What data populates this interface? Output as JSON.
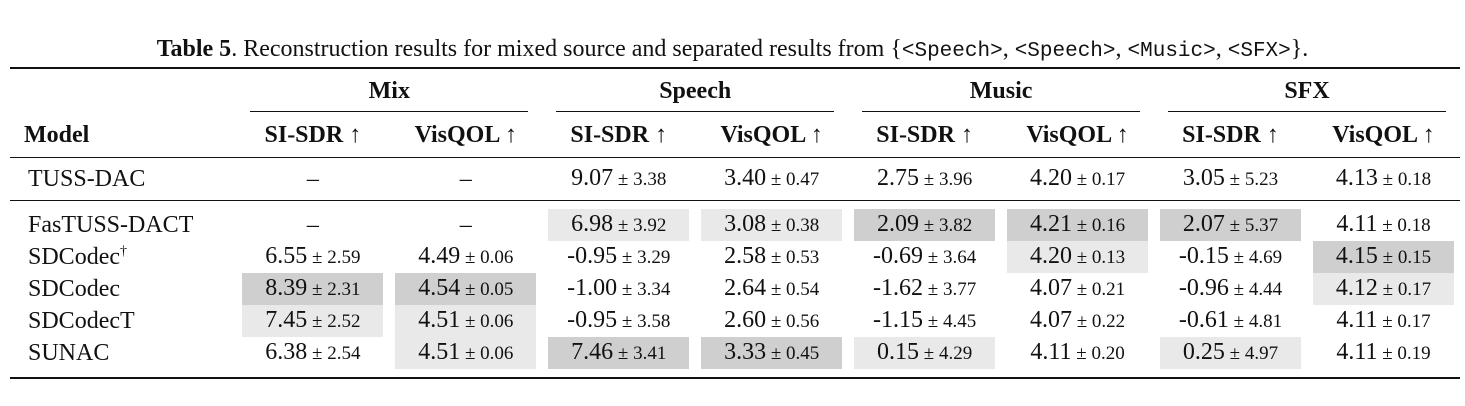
{
  "caption": {
    "label": "Table 5",
    "text": ". Reconstruction results for mixed source and separated results from {",
    "sources": [
      "<Speech>",
      "<Speech>",
      "<Music>",
      "<SFX>"
    ],
    "end": "}."
  },
  "header": {
    "model": "Model",
    "groups": [
      "Mix",
      "Speech",
      "Music",
      "SFX"
    ],
    "metrics": [
      "SI-SDR ↑",
      "VisQOL ↑"
    ]
  },
  "rows": [
    {
      "model": "TUSS-DAC",
      "sup": "",
      "cells": [
        {
          "v": "–",
          "sd": "",
          "shade": ""
        },
        {
          "v": "–",
          "sd": "",
          "shade": ""
        },
        {
          "v": "9.07",
          "sd": "3.38",
          "shade": ""
        },
        {
          "v": "3.40",
          "sd": "0.47",
          "shade": ""
        },
        {
          "v": "2.75",
          "sd": "3.96",
          "shade": ""
        },
        {
          "v": "4.20",
          "sd": "0.17",
          "shade": ""
        },
        {
          "v": "3.05",
          "sd": "5.23",
          "shade": ""
        },
        {
          "v": "4.13",
          "sd": "0.18",
          "shade": ""
        }
      ]
    },
    {
      "model": "FasTUSS-DACT",
      "sup": "",
      "cells": [
        {
          "v": "–",
          "sd": "",
          "shade": ""
        },
        {
          "v": "–",
          "sd": "",
          "shade": ""
        },
        {
          "v": "6.98",
          "sd": "3.92",
          "shade": "s2"
        },
        {
          "v": "3.08",
          "sd": "0.38",
          "shade": "s2"
        },
        {
          "v": "2.09",
          "sd": "3.82",
          "shade": "s1"
        },
        {
          "v": "4.21",
          "sd": "0.16",
          "shade": "s1"
        },
        {
          "v": "2.07",
          "sd": "5.37",
          "shade": "s1"
        },
        {
          "v": "4.11",
          "sd": "0.18",
          "shade": ""
        }
      ]
    },
    {
      "model": "SDCodec",
      "sup": "†",
      "cells": [
        {
          "v": "6.55",
          "sd": "2.59",
          "shade": ""
        },
        {
          "v": "4.49",
          "sd": "0.06",
          "shade": ""
        },
        {
          "v": "-0.95",
          "sd": "3.29",
          "shade": ""
        },
        {
          "v": "2.58",
          "sd": "0.53",
          "shade": ""
        },
        {
          "v": "-0.69",
          "sd": "3.64",
          "shade": ""
        },
        {
          "v": "4.20",
          "sd": "0.13",
          "shade": "s2"
        },
        {
          "v": "-0.15",
          "sd": "4.69",
          "shade": ""
        },
        {
          "v": "4.15",
          "sd": "0.15",
          "shade": "s1"
        }
      ]
    },
    {
      "model": "SDCodec",
      "sup": "",
      "cells": [
        {
          "v": "8.39",
          "sd": "2.31",
          "shade": "s1"
        },
        {
          "v": "4.54",
          "sd": "0.05",
          "shade": "s1"
        },
        {
          "v": "-1.00",
          "sd": "3.34",
          "shade": ""
        },
        {
          "v": "2.64",
          "sd": "0.54",
          "shade": ""
        },
        {
          "v": "-1.62",
          "sd": "3.77",
          "shade": ""
        },
        {
          "v": "4.07",
          "sd": "0.21",
          "shade": ""
        },
        {
          "v": "-0.96",
          "sd": "4.44",
          "shade": ""
        },
        {
          "v": "4.12",
          "sd": "0.17",
          "shade": "s2"
        }
      ]
    },
    {
      "model": "SDCodecT",
      "sup": "",
      "cells": [
        {
          "v": "7.45",
          "sd": "2.52",
          "shade": "s2"
        },
        {
          "v": "4.51",
          "sd": "0.06",
          "shade": "s2"
        },
        {
          "v": "-0.95",
          "sd": "3.58",
          "shade": ""
        },
        {
          "v": "2.60",
          "sd": "0.56",
          "shade": ""
        },
        {
          "v": "-1.15",
          "sd": "4.45",
          "shade": ""
        },
        {
          "v": "4.07",
          "sd": "0.22",
          "shade": ""
        },
        {
          "v": "-0.61",
          "sd": "4.81",
          "shade": ""
        },
        {
          "v": "4.11",
          "sd": "0.17",
          "shade": ""
        }
      ]
    },
    {
      "model": "SUNAC",
      "sup": "",
      "cells": [
        {
          "v": "6.38",
          "sd": "2.54",
          "shade": ""
        },
        {
          "v": "4.51",
          "sd": "0.06",
          "shade": "s2"
        },
        {
          "v": "7.46",
          "sd": "3.41",
          "shade": "s1"
        },
        {
          "v": "3.33",
          "sd": "0.45",
          "shade": "s1"
        },
        {
          "v": "0.15",
          "sd": "4.29",
          "shade": "s2"
        },
        {
          "v": "4.11",
          "sd": "0.20",
          "shade": ""
        },
        {
          "v": "0.25",
          "sd": "4.97",
          "shade": "s2"
        },
        {
          "v": "4.11",
          "sd": "0.19",
          "shade": ""
        }
      ]
    }
  ]
}
